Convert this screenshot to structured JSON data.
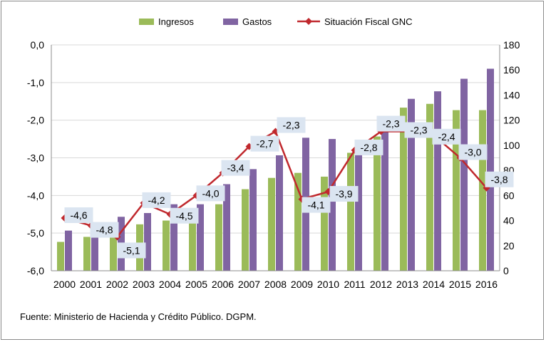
{
  "chart_data": {
    "type": "bar",
    "categories": [
      "2000",
      "2001",
      "2002",
      "2003",
      "2004",
      "2005",
      "2006",
      "2007",
      "2008",
      "2009",
      "2010",
      "2011",
      "2012",
      "2013",
      "2014",
      "2015",
      "2016"
    ],
    "series": [
      {
        "name": "Ingresos",
        "kind": "bar",
        "axis": "right",
        "color": "#9bbb59",
        "values": [
          23,
          27,
          32,
          37,
          40,
          43,
          53,
          65,
          74,
          78,
          75,
          94,
          107,
          130,
          133,
          128,
          128
        ]
      },
      {
        "name": "Gastos",
        "kind": "bar",
        "axis": "right",
        "color": "#8064a2",
        "values": [
          32,
          38,
          43,
          46,
          53,
          53,
          69,
          81,
          92,
          106,
          105,
          104,
          119,
          137,
          143,
          153,
          161
        ]
      },
      {
        "name": "Situación Fiscal GNC",
        "kind": "line",
        "axis": "left",
        "color": "#c0282d",
        "values": [
          -4.6,
          -4.8,
          -5.1,
          -4.2,
          -4.5,
          -4.0,
          -3.4,
          -2.7,
          -2.3,
          -4.1,
          -3.9,
          -2.8,
          -2.3,
          -2.3,
          -2.4,
          -3.0,
          -3.8
        ],
        "labels": [
          "-4,6",
          "-4,8",
          "-5,1",
          "-4,2",
          "-4,5",
          "-4,0",
          "-3,4",
          "-2,7",
          "-2,3",
          "-4,1",
          "-3,9",
          "-2,8",
          "-2,3",
          "-2,3",
          "-2,4",
          "-3,0",
          "-3,8"
        ]
      }
    ],
    "left_axis": {
      "min": -6.0,
      "max": 0.0,
      "step": 1.0,
      "tick_labels": [
        "0,0",
        "-1,0",
        "-2,0",
        "-3,0",
        "-4,0",
        "-5,0",
        "-6,0"
      ]
    },
    "right_axis": {
      "min": 0,
      "max": 180,
      "step": 20,
      "tick_labels": [
        "180",
        "160",
        "140",
        "120",
        "100",
        "80",
        "60",
        "40",
        "20",
        "0"
      ]
    },
    "grid": true,
    "legend_position": "top"
  },
  "source": "Fuente: Ministerio de Hacienda y Crédito Público. DGPM."
}
